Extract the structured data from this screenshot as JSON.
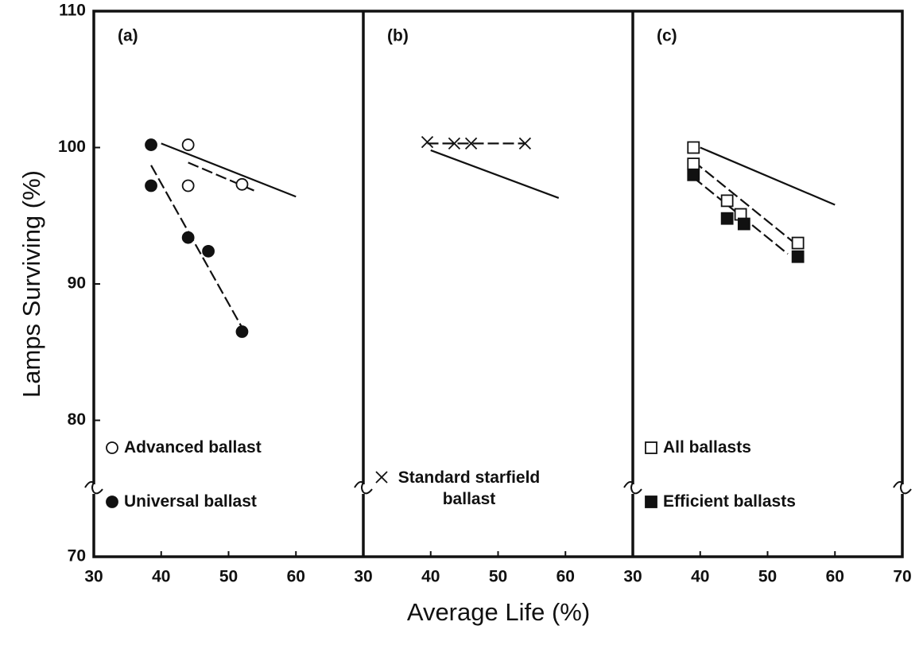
{
  "chart_data": {
    "type": "scatter",
    "ylabel": "Lamps Surviving (%)",
    "xlabel": "Average Life (%)",
    "ylim": [
      70,
      110
    ],
    "yticks": [
      70,
      80,
      90,
      100,
      110
    ],
    "panels": [
      {
        "label": "(a)",
        "xlim": [
          30,
          70
        ],
        "xticks": [
          30,
          40,
          50,
          60
        ],
        "series": [
          {
            "name": "Advanced ballast",
            "color": "#111",
            "marker": "circle-open",
            "x": [
              44,
              44,
              52
            ],
            "values": [
              100.2,
              97.2,
              97.3
            ]
          },
          {
            "name": "Universal ballast",
            "color": "#111",
            "marker": "circle-filled",
            "x": [
              38.5,
              38.5,
              44,
              47,
              52
            ],
            "values": [
              100.2,
              97.2,
              93.4,
              92.4,
              86.5
            ]
          }
        ],
        "fits": [
          {
            "style": "solid",
            "x": [
              40,
              60
            ],
            "values": [
              100.3,
              96.4
            ]
          },
          {
            "style": "dashed",
            "x": [
              44,
              54
            ],
            "values": [
              98.9,
              96.8
            ]
          },
          {
            "style": "dashed",
            "x": [
              38.5,
              52
            ],
            "values": [
              98.7,
              86.8
            ]
          }
        ]
      },
      {
        "label": "(b)",
        "xlim": [
          30,
          70
        ],
        "xticks": [
          30,
          40,
          50,
          60
        ],
        "series": [
          {
            "name": "Standard starfield ballast",
            "color": "#111",
            "marker": "x",
            "x": [
              39.5,
              43.5,
              46,
              54
            ],
            "values": [
              100.4,
              100.3,
              100.3,
              100.3
            ]
          }
        ],
        "fits": [
          {
            "style": "solid",
            "x": [
              40,
              59
            ],
            "values": [
              99.8,
              96.3
            ]
          },
          {
            "style": "dashed",
            "x": [
              39.5,
              54
            ],
            "values": [
              100.3,
              100.3
            ]
          }
        ]
      },
      {
        "label": "(c)",
        "xlim": [
          30,
          70
        ],
        "xticks": [
          30,
          40,
          50,
          60,
          70
        ],
        "series": [
          {
            "name": "All ballasts",
            "color": "#111",
            "marker": "square-open",
            "x": [
              39,
              39,
              44,
              46,
              54.5
            ],
            "values": [
              100,
              98.8,
              96.1,
              95.1,
              93
            ]
          },
          {
            "name": "Efficient ballasts",
            "color": "#111",
            "marker": "square-filled",
            "x": [
              39,
              44,
              46.5,
              54.5
            ],
            "values": [
              98,
              94.8,
              94.4,
              92
            ]
          }
        ],
        "fits": [
          {
            "style": "solid",
            "x": [
              40,
              60
            ],
            "values": [
              100,
              95.8
            ]
          },
          {
            "style": "dashed",
            "x": [
              39,
              54
            ],
            "values": [
              99,
              93
            ]
          },
          {
            "style": "dashed",
            "x": [
              39,
              53
            ],
            "values": [
              97.8,
              92.2
            ]
          }
        ]
      }
    ]
  }
}
